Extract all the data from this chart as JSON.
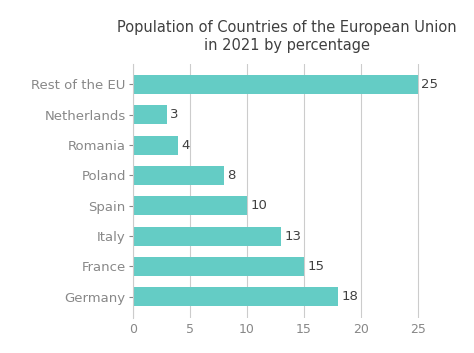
{
  "title": "Population of Countries of the European Union\nin 2021 by percentage",
  "categories": [
    "Rest of the EU",
    "Netherlands",
    "Romania",
    "Poland",
    "Spain",
    "Italy",
    "France",
    "Germany"
  ],
  "values": [
    25,
    3,
    4,
    8,
    10,
    13,
    15,
    18
  ],
  "bar_color": "#64CCC5",
  "label_color": "#404040",
  "title_color": "#404040",
  "tick_color": "#888888",
  "background_color": "#ffffff",
  "xlim": [
    0,
    27
  ],
  "xticks": [
    0,
    5,
    10,
    15,
    20,
    25
  ],
  "title_fontsize": 10.5,
  "label_fontsize": 9.5,
  "tick_fontsize": 9,
  "value_fontsize": 9.5,
  "bar_height": 0.62,
  "grid_color": "#cccccc"
}
